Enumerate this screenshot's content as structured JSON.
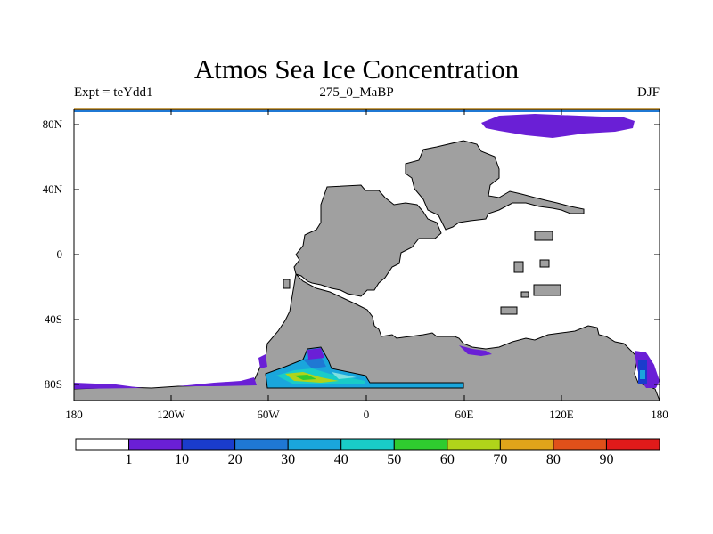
{
  "title": "Atmos Sea Ice Concentration",
  "subtitle_left": "Expt = teYdd1",
  "subtitle_center": "275_0_MaBP",
  "subtitle_right": "DJF",
  "axes": {
    "lat_ticks": [
      "80N",
      "40N",
      "0",
      "40S",
      "80S"
    ],
    "lon_ticks": [
      "180",
      "120W",
      "60W",
      "0",
      "60E",
      "120E",
      "180"
    ]
  },
  "colors": {
    "land": "#a0a0a0",
    "ocean": "#ffffff"
  },
  "colorbar": {
    "labels": [
      "1",
      "10",
      "20",
      "30",
      "40",
      "50",
      "60",
      "70",
      "80",
      "90"
    ],
    "colors": [
      "#ffffff",
      "#6a1fd6",
      "#1a3ccc",
      "#1f78d4",
      "#1aa6dc",
      "#19ccc8",
      "#2fcc2f",
      "#b0d41a",
      "#e0a41a",
      "#e0501a",
      "#e01a1a"
    ]
  }
}
